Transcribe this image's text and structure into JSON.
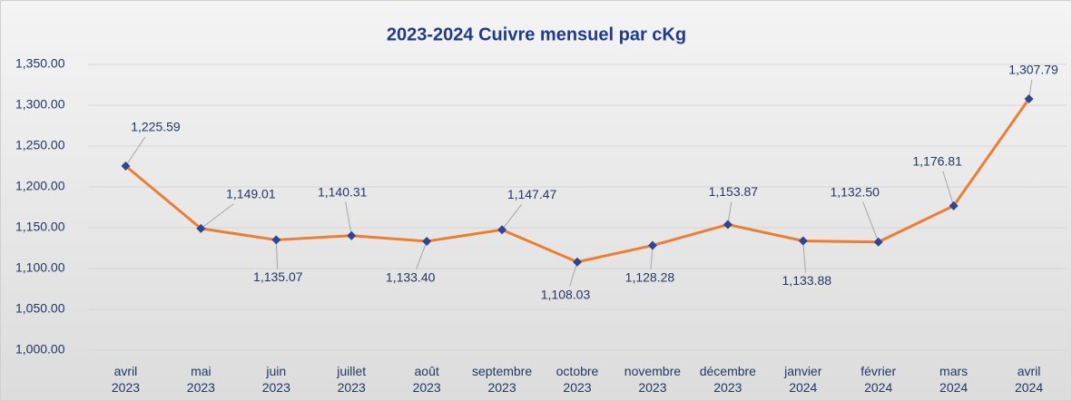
{
  "chart_data": {
    "type": "line",
    "title": "2023-2024 Cuivre mensuel par cKg",
    "categories": [
      "avril 2023",
      "mai 2023",
      "juin 2023",
      "juillet 2023",
      "août 2023",
      "septembre 2023",
      "octobre 2023",
      "novembre 2023",
      "décembre 2023",
      "janvier 2024",
      "février 2024",
      "mars 2024",
      "avril 2024"
    ],
    "series": [
      {
        "name": "Cuivre",
        "color": "#ed7d31",
        "values": [
          1225.59,
          1149.01,
          1135.07,
          1140.31,
          1133.4,
          1147.47,
          1108.03,
          1128.28,
          1153.87,
          1133.88,
          1132.5,
          1176.81,
          1307.79
        ],
        "value_labels": [
          "1,225.59",
          "1,149.01",
          "1,135.07",
          "1,140.31",
          "1,133.40",
          "1,147.47",
          "1,108.03",
          "1,128.28",
          "1,153.87",
          "1,133.88",
          "1,132.50",
          "1,176.81",
          "1,307.79"
        ]
      }
    ],
    "marker_color": "#2e4593",
    "ylim": [
      1000,
      1350
    ],
    "yticks": [
      {
        "value": 1000,
        "label": "1,000.00"
      },
      {
        "value": 1050,
        "label": "1,050.00"
      },
      {
        "value": 1100,
        "label": "1,100.00"
      },
      {
        "value": 1150,
        "label": "1,150.00"
      },
      {
        "value": 1200,
        "label": "1,200.00"
      },
      {
        "value": 1250,
        "label": "1,250.00"
      },
      {
        "value": 1300,
        "label": "1,300.00"
      },
      {
        "value": 1350,
        "label": "1,350.00"
      }
    ],
    "grid": true
  }
}
